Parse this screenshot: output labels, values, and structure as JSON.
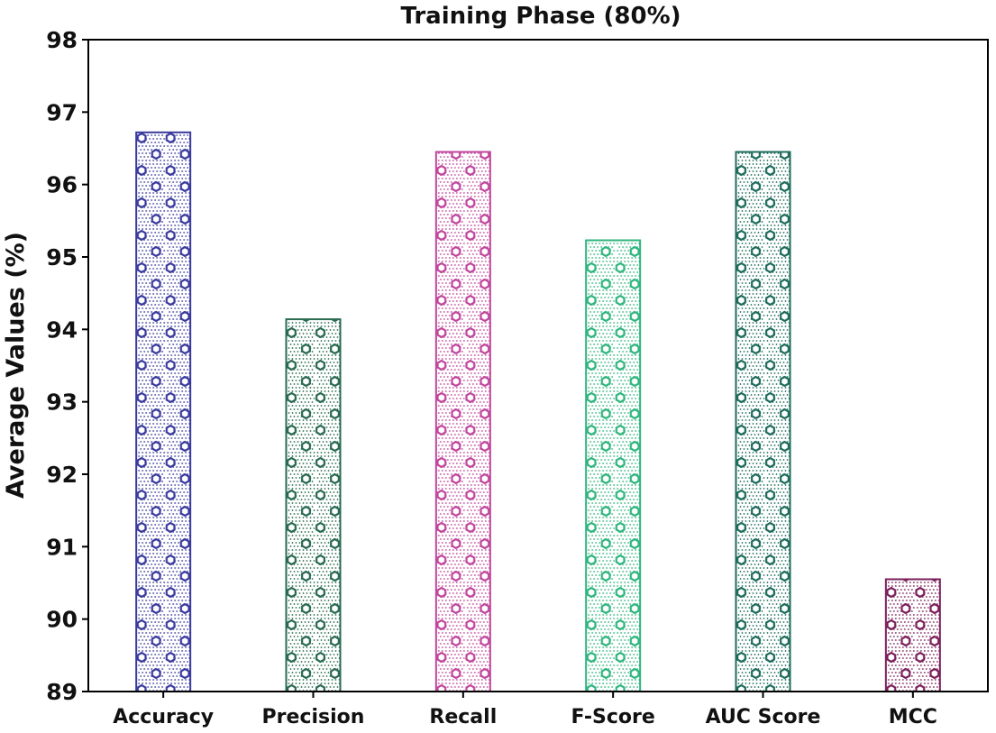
{
  "chart_data": {
    "type": "bar",
    "title": "Training Phase (80%)",
    "xlabel": "",
    "ylabel": "Average Values (%)",
    "ylim": [
      89,
      98
    ],
    "yticks": [
      "89",
      "90",
      "91",
      "92",
      "93",
      "94",
      "95",
      "96",
      "97",
      "98"
    ],
    "grid": false,
    "categories": [
      "Accuracy",
      "Precision",
      "Recall",
      "F-Score",
      "AUC Score",
      "MCC"
    ],
    "values": [
      96.72,
      94.14,
      96.45,
      95.23,
      96.45,
      90.55
    ],
    "colors": [
      "#3a3a9e",
      "#2a6b52",
      "#c0469c",
      "#2fb57e",
      "#1f6d5d",
      "#7a1f5a"
    ]
  }
}
